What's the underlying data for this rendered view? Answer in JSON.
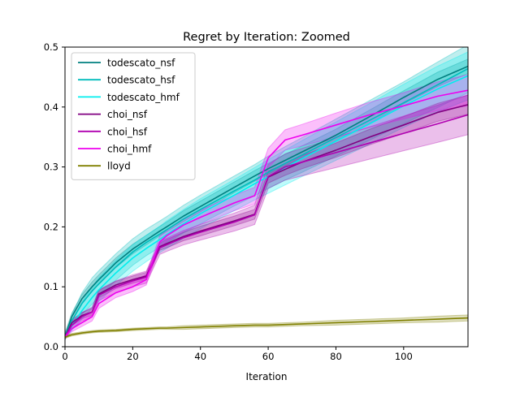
{
  "chart_data": {
    "type": "line",
    "title": "Regret by Iteration: Zoomed",
    "xlabel": "Iteration",
    "ylabel": "",
    "xlim": [
      0,
      119
    ],
    "ylim": [
      0,
      0.5
    ],
    "x_ticks": [
      0,
      20,
      40,
      60,
      80,
      100
    ],
    "x_tick_labels": [
      "0",
      "20",
      "40",
      "60",
      "80",
      "100"
    ],
    "y_ticks": [
      0.0,
      0.1,
      0.2,
      0.3,
      0.4,
      0.5
    ],
    "y_tick_labels": [
      "0.0",
      "0.1",
      "0.2",
      "0.3",
      "0.4",
      "0.5"
    ],
    "grid": false,
    "legend_position": "top-left",
    "x": [
      0,
      2,
      5,
      8,
      10,
      15,
      20,
      24,
      28,
      30,
      35,
      40,
      50,
      56,
      60,
      65,
      70,
      80,
      90,
      100,
      110,
      119
    ],
    "series": [
      {
        "name": "todescato_nsf",
        "color": "#008080",
        "values": [
          0.017,
          0.05,
          0.08,
          0.1,
          0.112,
          0.14,
          0.163,
          0.178,
          0.193,
          0.2,
          0.218,
          0.234,
          0.266,
          0.285,
          0.297,
          0.311,
          0.325,
          0.353,
          0.384,
          0.416,
          0.446,
          0.468
        ],
        "band": [
          0.006,
          0.006,
          0.007,
          0.008,
          0.008,
          0.008,
          0.008,
          0.008,
          0.008,
          0.008,
          0.009,
          0.009,
          0.009,
          0.009,
          0.009,
          0.01,
          0.01,
          0.01,
          0.011,
          0.011,
          0.012,
          0.012
        ]
      },
      {
        "name": "todescato_hsf",
        "color": "#00bcbc",
        "values": [
          0.016,
          0.043,
          0.072,
          0.093,
          0.105,
          0.133,
          0.158,
          0.174,
          0.188,
          0.195,
          0.213,
          0.229,
          0.26,
          0.278,
          0.291,
          0.306,
          0.32,
          0.349,
          0.378,
          0.407,
          0.437,
          0.464
        ],
        "band": [
          0.004,
          0.01,
          0.018,
          0.022,
          0.022,
          0.022,
          0.022,
          0.022,
          0.022,
          0.022,
          0.023,
          0.024,
          0.025,
          0.026,
          0.027,
          0.028,
          0.029,
          0.031,
          0.033,
          0.035,
          0.038,
          0.04
        ]
      },
      {
        "name": "todescato_hmf",
        "color": "#00eeee",
        "values": [
          0.016,
          0.035,
          0.06,
          0.082,
          0.095,
          0.123,
          0.148,
          0.164,
          0.179,
          0.187,
          0.205,
          0.222,
          0.253,
          0.272,
          0.284,
          0.299,
          0.314,
          0.343,
          0.372,
          0.402,
          0.43,
          0.452
        ],
        "band": [
          0.003,
          0.008,
          0.014,
          0.018,
          0.02,
          0.021,
          0.022,
          0.022,
          0.022,
          0.023,
          0.024,
          0.025,
          0.026,
          0.027,
          0.028,
          0.029,
          0.03,
          0.032,
          0.034,
          0.036,
          0.038,
          0.04
        ]
      },
      {
        "name": "choi_nsf",
        "color": "#800080",
        "values": [
          0.016,
          0.04,
          0.052,
          0.058,
          0.088,
          0.103,
          0.112,
          0.118,
          0.167,
          0.172,
          0.184,
          0.193,
          0.21,
          0.221,
          0.283,
          0.296,
          0.308,
          0.328,
          0.35,
          0.37,
          0.391,
          0.404
        ],
        "band": [
          0.003,
          0.005,
          0.005,
          0.006,
          0.006,
          0.006,
          0.006,
          0.006,
          0.006,
          0.007,
          0.007,
          0.008,
          0.008,
          0.008,
          0.01,
          0.01,
          0.011,
          0.012,
          0.013,
          0.014,
          0.015,
          0.016
        ]
      },
      {
        "name": "choi_hsf",
        "color": "#b000b0",
        "values": [
          0.016,
          0.036,
          0.05,
          0.058,
          0.086,
          0.1,
          0.11,
          0.116,
          0.165,
          0.17,
          0.182,
          0.191,
          0.208,
          0.22,
          0.284,
          0.3,
          0.308,
          0.324,
          0.34,
          0.356,
          0.372,
          0.387
        ],
        "band": [
          0.003,
          0.006,
          0.007,
          0.008,
          0.009,
          0.01,
          0.01,
          0.01,
          0.011,
          0.011,
          0.012,
          0.013,
          0.015,
          0.016,
          0.02,
          0.022,
          0.023,
          0.025,
          0.027,
          0.029,
          0.031,
          0.033
        ]
      },
      {
        "name": "choi_hmf",
        "color": "#ee00ee",
        "values": [
          0.016,
          0.03,
          0.04,
          0.05,
          0.072,
          0.09,
          0.1,
          0.112,
          0.175,
          0.185,
          0.203,
          0.216,
          0.24,
          0.252,
          0.315,
          0.345,
          0.353,
          0.37,
          0.387,
          0.402,
          0.418,
          0.428
        ],
        "band": [
          0.003,
          0.005,
          0.006,
          0.007,
          0.008,
          0.008,
          0.008,
          0.009,
          0.01,
          0.01,
          0.011,
          0.012,
          0.013,
          0.014,
          0.016,
          0.017,
          0.018,
          0.02,
          0.021,
          0.022,
          0.024,
          0.026
        ]
      },
      {
        "name": "lloyd",
        "color": "#808000",
        "values": [
          0.016,
          0.02,
          0.023,
          0.025,
          0.026,
          0.027,
          0.029,
          0.03,
          0.031,
          0.031,
          0.032,
          0.033,
          0.035,
          0.036,
          0.036,
          0.037,
          0.038,
          0.04,
          0.042,
          0.044,
          0.046,
          0.048
        ],
        "band": [
          0.002,
          0.002,
          0.002,
          0.002,
          0.002,
          0.002,
          0.002,
          0.002,
          0.002,
          0.002,
          0.003,
          0.003,
          0.003,
          0.003,
          0.003,
          0.003,
          0.003,
          0.004,
          0.004,
          0.004,
          0.005,
          0.005
        ]
      }
    ]
  }
}
